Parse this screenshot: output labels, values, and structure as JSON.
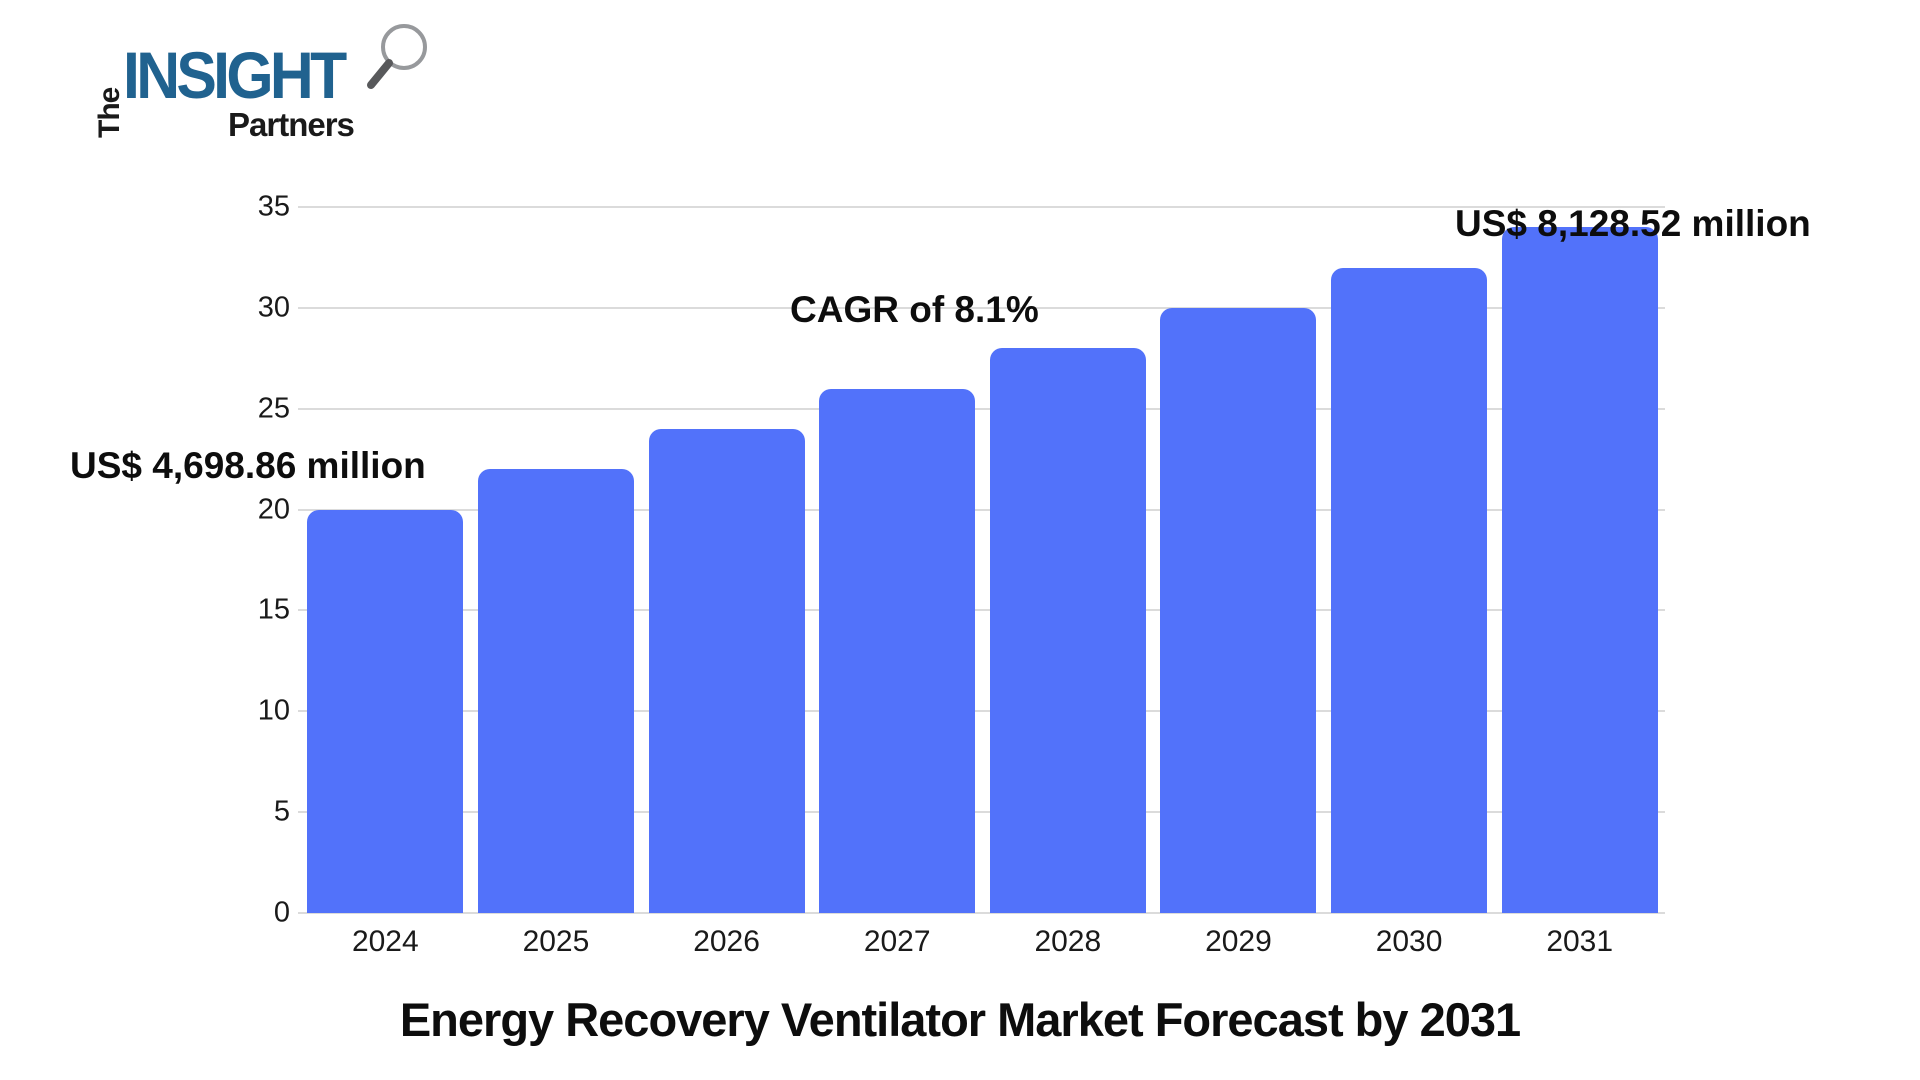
{
  "logo": {
    "the": "The",
    "insight": "INSIGHT",
    "partners": "Partners",
    "insight_color": "#20628F",
    "magnifier_icon": "magnifying-glass-icon"
  },
  "chart_data": {
    "type": "bar",
    "title": "Energy Recovery Ventilator Market Forecast by 2031",
    "categories": [
      "2024",
      "2025",
      "2026",
      "2027",
      "2028",
      "2029",
      "2030",
      "2031"
    ],
    "values": [
      20,
      22,
      24,
      26,
      28,
      30,
      32,
      34
    ],
    "yticks": [
      0,
      5,
      10,
      15,
      20,
      25,
      30,
      35
    ],
    "ylim": [
      0,
      35
    ],
    "xlabel": "",
    "ylabel": "",
    "grid": "horizontal",
    "legend": "none",
    "bar_color": "#5272FA",
    "gridline_color": "#DBDBDB",
    "annotations": [
      {
        "text": "US$ 4,698.86 million",
        "refers_to": "2024"
      },
      {
        "text": "CAGR of 8.1%",
        "refers_to": "2024-2031"
      },
      {
        "text": "US$ 8,128.52 million",
        "refers_to": "2031"
      }
    ]
  }
}
